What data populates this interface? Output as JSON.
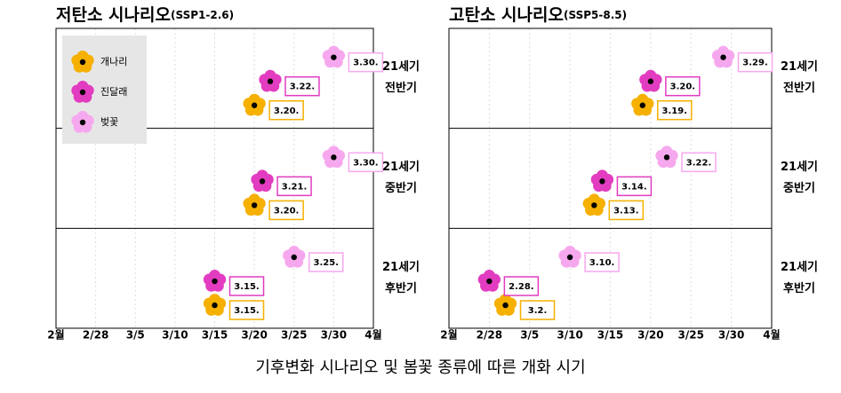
{
  "caption": "기후변화 시나리오 및 봄꽃 종류에 따른 개화 시기",
  "chart_data": [
    {
      "type": "flower-dot",
      "title": "저탄소 시나리오",
      "subtitle": "(SSP1-2.6)",
      "categories": [
        "21세기 전반기",
        "21세기 중반기",
        "21세기 후반기"
      ],
      "series": [
        {
          "name": "개나리",
          "color": "#f5b000",
          "values": [
            20,
            20,
            15
          ],
          "value_labels": [
            "3.20.",
            "3.20.",
            "3.15."
          ]
        },
        {
          "name": "진달래",
          "color": "#e23cc0",
          "values": [
            22,
            21,
            15
          ],
          "value_labels": [
            "3.22.",
            "3.21.",
            "3.15."
          ]
        },
        {
          "name": "벚꽃",
          "color": "#f6a8ee",
          "values": [
            30,
            30,
            25
          ],
          "value_labels": [
            "3.30.",
            "3.30.",
            "3.25."
          ]
        }
      ],
      "xlim": [
        -5,
        35
      ],
      "xticks": [
        {
          "value": -5,
          "label": "2월"
        },
        {
          "value": 0,
          "label": "2/28"
        },
        {
          "value": 5,
          "label": "3/5"
        },
        {
          "value": 10,
          "label": "3/10"
        },
        {
          "value": 15,
          "label": "3/15"
        },
        {
          "value": 20,
          "label": "3/20"
        },
        {
          "value": 25,
          "label": "3/25"
        },
        {
          "value": 30,
          "label": "3/30"
        },
        {
          "value": 35,
          "label": "4월"
        }
      ],
      "grid": true,
      "legend": "upper left"
    },
    {
      "type": "flower-dot",
      "title": "고탄소 시나리오",
      "subtitle": "(SSP5-8.5)",
      "categories": [
        "21세기 전반기",
        "21세기 중반기",
        "21세기 후반기"
      ],
      "series": [
        {
          "name": "개나리",
          "color": "#f5b000",
          "values": [
            19,
            13,
            2
          ],
          "value_labels": [
            "3.19.",
            "3.13.",
            "3.2."
          ]
        },
        {
          "name": "진달래",
          "color": "#e23cc0",
          "values": [
            20,
            14,
            0
          ],
          "value_labels": [
            "3.20.",
            "3.14.",
            "2.28."
          ]
        },
        {
          "name": "벚꽃",
          "color": "#f6a8ee",
          "values": [
            29,
            22,
            10
          ],
          "value_labels": [
            "3.29.",
            "3.22.",
            "3.10."
          ]
        }
      ],
      "xlim": [
        -5,
        35
      ],
      "xticks": [
        {
          "value": -5,
          "label": "2월"
        },
        {
          "value": 0,
          "label": "2/28"
        },
        {
          "value": 5,
          "label": "3/5"
        },
        {
          "value": 10,
          "label": "3/10"
        },
        {
          "value": 15,
          "label": "3/15"
        },
        {
          "value": 20,
          "label": "3/20"
        },
        {
          "value": 25,
          "label": "3/25"
        },
        {
          "value": 30,
          "label": "3/30"
        },
        {
          "value": 35,
          "label": "4월"
        }
      ],
      "grid": true
    }
  ]
}
